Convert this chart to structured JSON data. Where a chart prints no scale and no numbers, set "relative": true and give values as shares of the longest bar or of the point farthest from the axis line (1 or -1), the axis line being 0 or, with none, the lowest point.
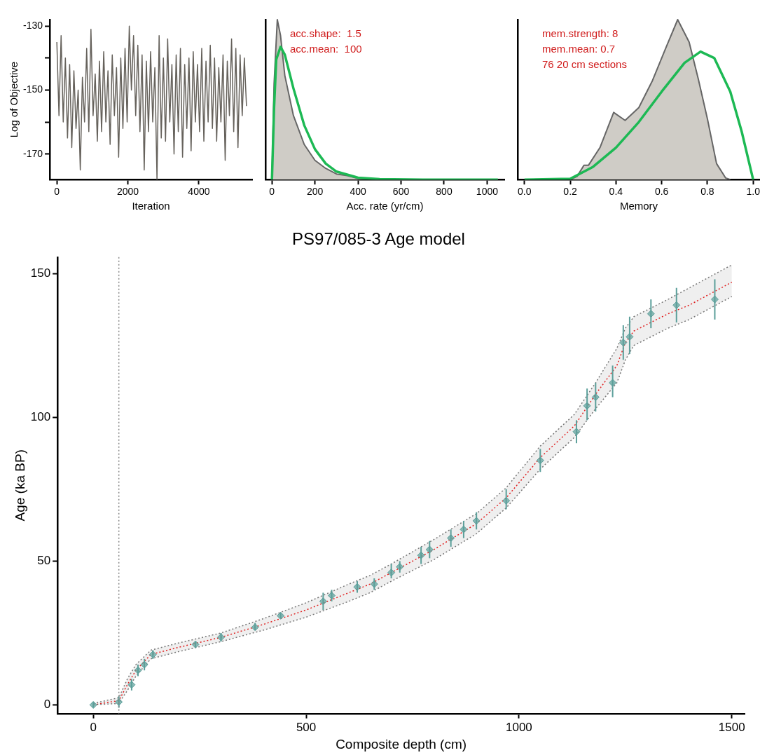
{
  "chart_data": [
    {
      "type": "line",
      "xlabel": "Iteration",
      "ylabel": "Log of Objective",
      "xlim": [
        -200,
        5500
      ],
      "xticks": [
        0,
        2000,
        4000
      ],
      "ylim": [
        -178,
        -128
      ],
      "yticks": [
        -130,
        {
          "value": -140,
          "label": null
        },
        -150,
        {
          "value": -160,
          "label": null
        },
        -170
      ],
      "grid": false,
      "marker": "none",
      "x": [
        0,
        60,
        120,
        180,
        240,
        300,
        360,
        420,
        480,
        540,
        600,
        660,
        720,
        780,
        840,
        900,
        960,
        1020,
        1080,
        1140,
        1200,
        1260,
        1320,
        1380,
        1440,
        1500,
        1560,
        1620,
        1680,
        1740,
        1800,
        1860,
        1920,
        1980,
        2040,
        2100,
        2160,
        2220,
        2280,
        2340,
        2400,
        2460,
        2520,
        2580,
        2640,
        2700,
        2760,
        2820,
        2880,
        2940,
        3000,
        3060,
        3120,
        3180,
        3240,
        3300,
        3360,
        3420,
        3480,
        3540,
        3600,
        3660,
        3720,
        3780,
        3840,
        3900,
        3960,
        4020,
        4080,
        4140,
        4200,
        4260,
        4320,
        4380,
        4440,
        4500,
        4560,
        4620,
        4680,
        4740,
        4800,
        4860,
        4920,
        4980,
        5040,
        5100,
        5160,
        5220,
        5280,
        5340
      ],
      "series": [
        {
          "color": "#66625c",
          "values": [
            -135,
            -158,
            -133,
            -160,
            -140,
            -165,
            -142,
            -168,
            -144,
            -162,
            -150,
            -175,
            -146,
            -160,
            -137,
            -163,
            -131,
            -158,
            -145,
            -166,
            -141,
            -163,
            -138,
            -160,
            -144,
            -167,
            -139,
            -158,
            -143,
            -171,
            -140,
            -162,
            -137,
            -160,
            -130,
            -150,
            -133,
            -158,
            -136,
            -163,
            -139,
            -175,
            -141,
            -163,
            -138,
            -160,
            -143,
            -178,
            -133,
            -165,
            -140,
            -166,
            -134,
            -160,
            -142,
            -170,
            -139,
            -163,
            -137,
            -171,
            -142,
            -162,
            -140,
            -169,
            -138,
            -160,
            -142,
            -163,
            -137,
            -166,
            -141,
            -160,
            -136,
            -162,
            -140,
            -166,
            -143,
            -160,
            -139,
            -172,
            -141,
            -158,
            -134,
            -163,
            -137,
            -168,
            -139,
            -158,
            -140,
            -155
          ]
        }
      ]
    },
    {
      "type": "area",
      "relative": true,
      "tick_labels": "x",
      "xlabel": "Acc. rate (yr/cm)",
      "xlim": [
        -30,
        1080
      ],
      "xticks": [
        0,
        200,
        400,
        600,
        800,
        1000
      ],
      "grid": false,
      "marker": "none",
      "annotations": [
        "acc.shape:  1.5",
        "acc.mean:  100"
      ],
      "series": [
        {
          "type": "area",
          "color": "#cfccc6",
          "x": [
            0,
            10,
            25,
            40,
            60,
            100,
            150,
            200,
            250,
            300,
            350,
            400,
            500,
            1050
          ],
          "values": [
            0,
            0.6,
            1,
            0.9,
            0.65,
            0.4,
            0.22,
            0.12,
            0.07,
            0.035,
            0.025,
            0.008,
            0,
            0
          ]
        },
        {
          "type": "line",
          "color": "#1db954",
          "x": [
            0,
            10,
            20,
            40,
            60,
            100,
            150,
            200,
            250,
            300,
            400,
            500,
            700,
            1050
          ],
          "values": [
            0,
            0.45,
            0.75,
            0.83,
            0.78,
            0.57,
            0.34,
            0.19,
            0.1,
            0.05,
            0.012,
            0.003,
            0,
            0
          ]
        }
      ]
    },
    {
      "type": "area",
      "relative": true,
      "tick_labels": "x",
      "xlabel": "Memory",
      "xlim": [
        -0.03,
        1.03
      ],
      "xticks": [
        {
          "value": 0,
          "label": "0.0"
        },
        0.2,
        0.4,
        0.6,
        0.8,
        {
          "value": 1,
          "label": "1.0"
        }
      ],
      "grid": false,
      "marker": "none",
      "annotations": [
        "mem.strength: 8",
        "mem.mean: 0.7",
        "76 20 cm sections"
      ],
      "series": [
        {
          "type": "area",
          "color": "#cfccc6",
          "x": [
            0.2,
            0.23,
            0.26,
            0.28,
            0.33,
            0.39,
            0.44,
            0.5,
            0.56,
            0.62,
            0.67,
            0.72,
            0.76,
            0.8,
            0.84,
            0.88,
            0.9
          ],
          "values": [
            0,
            0.02,
            0.09,
            0.09,
            0.2,
            0.42,
            0.37,
            0.45,
            0.62,
            0.83,
            1,
            0.86,
            0.63,
            0.38,
            0.1,
            0.01,
            0
          ]
        },
        {
          "type": "line",
          "color": "#1db954",
          "x": [
            0,
            0.2,
            0.3,
            0.4,
            0.5,
            0.6,
            0.7,
            0.77,
            0.83,
            0.9,
            0.95,
            1
          ],
          "values": [
            0,
            0.005,
            0.08,
            0.2,
            0.36,
            0.55,
            0.73,
            0.8,
            0.76,
            0.55,
            0.3,
            0
          ]
        }
      ]
    },
    {
      "type": "line",
      "title": "PS97/085-3 Age model",
      "xlabel": "Composite depth (cm)",
      "ylabel": "Age (ka BP)",
      "xlim": [
        -84,
        1530
      ],
      "xticks": [
        0,
        500,
        1000,
        1500
      ],
      "ylim": [
        -3,
        155.7
      ],
      "yticks": [
        0,
        50,
        100,
        150
      ],
      "grid": false,
      "ref_lines": [
        {
          "axis": "x",
          "value": 60,
          "color": "#888888",
          "line_style": "dotted"
        }
      ],
      "series": [
        {
          "type": "line",
          "color": "#e02020",
          "line_style": "dotted",
          "marker": "none",
          "x": [
            0,
            60,
            80,
            100,
            135,
            200,
            300,
            400,
            500,
            600,
            650,
            700,
            800,
            900,
            970,
            1050,
            1130,
            1180,
            1230,
            1250,
            1270,
            1350,
            1400,
            1500
          ],
          "values": [
            0,
            1.5,
            7,
            12,
            17.5,
            20,
            23.5,
            28,
            33,
            39,
            42,
            46,
            54,
            63,
            72,
            86,
            97,
            108,
            118,
            126,
            130,
            136,
            139,
            147
          ],
          "lower": [
            0,
            0.5,
            5,
            10,
            16,
            18.5,
            22,
            26,
            30.5,
            36,
            39,
            43,
            50.5,
            59.5,
            68.5,
            82,
            93,
            103,
            112,
            120,
            125,
            131,
            134,
            142
          ],
          "upper": [
            0.5,
            2.5,
            9,
            14,
            19,
            21.5,
            25,
            30,
            35.5,
            42,
            45,
            49,
            57.5,
            66.5,
            75.5,
            90,
            101,
            112,
            124,
            131,
            135,
            141,
            145,
            153
          ]
        },
        {
          "type": "line",
          "color": "#777777",
          "line_style": "dotted",
          "marker": "none",
          "x": [
            0,
            60,
            80,
            100,
            135,
            200,
            300,
            400,
            500,
            600,
            650,
            700,
            800,
            900,
            970,
            1050,
            1130,
            1180,
            1230,
            1250,
            1270,
            1350,
            1400,
            1500
          ],
          "values": [
            0,
            0.5,
            5,
            10,
            16,
            18.5,
            22,
            26,
            30.5,
            36,
            39,
            43,
            50.5,
            59.5,
            68.5,
            82,
            93,
            103,
            112,
            120,
            125,
            131,
            134,
            142
          ]
        },
        {
          "type": "line",
          "color": "#777777",
          "line_style": "dotted",
          "marker": "none",
          "x": [
            0,
            60,
            80,
            100,
            135,
            200,
            300,
            400,
            500,
            600,
            650,
            700,
            800,
            900,
            970,
            1050,
            1130,
            1180,
            1230,
            1250,
            1270,
            1350,
            1400,
            1500
          ],
          "values": [
            0.5,
            2.5,
            9,
            14,
            19,
            21.5,
            25,
            30,
            35.5,
            42,
            45,
            49,
            57.5,
            66.5,
            75.5,
            90,
            101,
            112,
            124,
            131,
            135,
            141,
            145,
            153
          ]
        },
        {
          "type": "scatter",
          "color": "#5b9f9a",
          "marker": "diamond",
          "x": [
            0,
            60,
            90,
            105,
            120,
            140,
            240,
            300,
            380,
            440,
            540,
            560,
            620,
            660,
            700,
            720,
            770,
            790,
            840,
            870,
            900,
            970,
            1050,
            1135,
            1160,
            1180,
            1220,
            1245,
            1260,
            1310,
            1370,
            1460
          ],
          "values": [
            0,
            1,
            7,
            12,
            14,
            17.5,
            21,
            23.5,
            27,
            31,
            36,
            38,
            41,
            42,
            46,
            48,
            52,
            54,
            58,
            61,
            64,
            71,
            85,
            95,
            104,
            107,
            112,
            126,
            128,
            136,
            139,
            141
          ],
          "errors": [
            [
              -1,
              1
            ],
            [
              -1,
              3
            ],
            [
              5,
              9
            ],
            [
              10,
              14
            ],
            [
              12,
              16
            ],
            [
              16,
              19
            ],
            [
              20,
              22
            ],
            [
              22,
              25
            ],
            [
              26,
              28.5
            ],
            [
              30,
              32
            ],
            [
              33,
              39
            ],
            [
              36,
              40
            ],
            [
              39,
              43
            ],
            [
              40,
              44
            ],
            [
              44,
              49
            ],
            [
              46,
              50
            ],
            [
              49,
              55
            ],
            [
              51,
              57
            ],
            [
              55,
              61
            ],
            [
              58,
              64
            ],
            [
              61,
              67
            ],
            [
              68,
              75
            ],
            [
              81,
              89
            ],
            [
              91,
              99
            ],
            [
              99,
              110
            ],
            [
              102,
              112
            ],
            [
              107,
              118
            ],
            [
              120,
              132
            ],
            [
              122,
              135
            ],
            [
              131,
              141
            ],
            [
              133,
              145
            ],
            [
              134,
              148
            ]
          ]
        }
      ]
    }
  ]
}
